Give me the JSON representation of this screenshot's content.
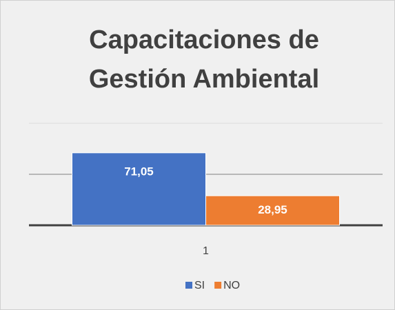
{
  "chart_data": {
    "type": "bar",
    "title": "Capacitaciones de Gestión Ambiental",
    "categories": [
      "1"
    ],
    "series": [
      {
        "name": "SI",
        "color": "#4472c4",
        "values": [
          71.05
        ],
        "value_labels": [
          "71,05"
        ]
      },
      {
        "name": "NO",
        "color": "#ed7d31",
        "values": [
          28.95
        ],
        "value_labels": [
          "28,95"
        ]
      }
    ],
    "ylim": [
      0,
      100
    ],
    "yticks": [
      0,
      50,
      100
    ],
    "grid": true,
    "legend": "bottom"
  }
}
